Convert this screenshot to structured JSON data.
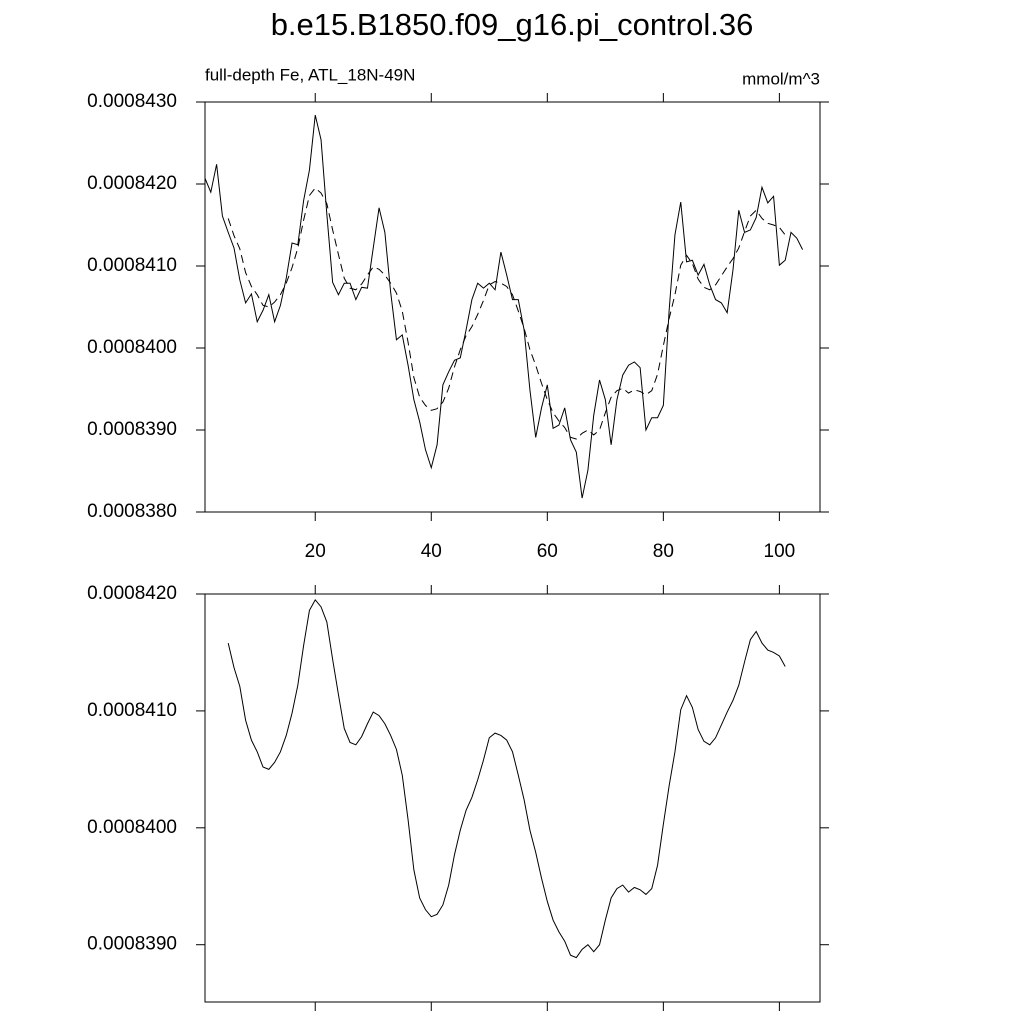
{
  "chart_data": [
    {
      "type": "line",
      "title": "b.e15.B1850.f09_g16.pi_control.36",
      "left_string": "full-depth Fe, ATL_18N-49N",
      "right_string": "mmol/m^3",
      "x": [
        1,
        2,
        3,
        4,
        5,
        6,
        7,
        8,
        9,
        10,
        11,
        12,
        13,
        14,
        15,
        16,
        17,
        18,
        19,
        20,
        21,
        22,
        23,
        24,
        25,
        26,
        27,
        28,
        29,
        30,
        31,
        32,
        33,
        34,
        35,
        36,
        37,
        38,
        39,
        40,
        41,
        42,
        43,
        44,
        45,
        46,
        47,
        48,
        49,
        50,
        51,
        52,
        53,
        54,
        55,
        56,
        57,
        58,
        59,
        60,
        61,
        62,
        63,
        64,
        65,
        66,
        67,
        68,
        69,
        70,
        71,
        72,
        73,
        74,
        75,
        76,
        77,
        78,
        79,
        80,
        81,
        82,
        83,
        84,
        85,
        86,
        87,
        88,
        89,
        90,
        91,
        92,
        93,
        94,
        95,
        96,
        97,
        98,
        99,
        100,
        101,
        102,
        103,
        104
      ],
      "series": [
        {
          "color": "#000000",
          "dash": false,
          "values": [
            0.00084207,
            0.0008419,
            0.00084224,
            0.00084161,
            0.00084141,
            0.00084122,
            0.00084083,
            0.00084055,
            0.00084066,
            0.00084032,
            0.00084046,
            0.00084065,
            0.00084032,
            0.00084052,
            0.00084085,
            0.00084128,
            0.00084126,
            0.0008418,
            0.00084217,
            0.00084284,
            0.00084254,
            0.00084163,
            0.0008408,
            0.00084065,
            0.00084079,
            0.00084079,
            0.00084059,
            0.00084074,
            0.00084073,
            0.00084122,
            0.00084171,
            0.00084141,
            0.00084068,
            0.0008401,
            0.00084016,
            0.00083979,
            0.00083937,
            0.0008391,
            0.00083876,
            0.00083854,
            0.00083882,
            0.00083955,
            0.00083971,
            0.00083985,
            0.00083988,
            0.00084022,
            0.00084059,
            0.00084079,
            0.00084073,
            0.00084079,
            0.00084071,
            0.00084117,
            0.00084089,
            0.00084059,
            0.00084059,
            0.00084022,
            0.00083949,
            0.00083891,
            0.00083927,
            0.00083955,
            0.00083902,
            0.00083906,
            0.00083927,
            0.00083888,
            0.00083873,
            0.00083817,
            0.00083851,
            0.00083918,
            0.00083961,
            0.00083937,
            0.00083882,
            0.00083937,
            0.00083967,
            0.00083979,
            0.00083983,
            0.00083976,
            0.000839,
            0.00083915,
            0.00083915,
            0.0008393,
            0.00084046,
            0.00084138,
            0.00084178,
            0.00084105,
            0.00084107,
            0.00084089,
            0.00084102,
            0.00084077,
            0.00084059,
            0.00084055,
            0.00084043,
            0.00084095,
            0.00084168,
            0.00084141,
            0.00084144,
            0.00084159,
            0.00084196,
            0.00084177,
            0.00084185,
            0.00084101,
            0.00084107,
            0.00084141,
            0.00084134,
            0.0008412
          ]
        },
        {
          "color": "#000000",
          "dash": true,
          "values": [
            null,
            null,
            null,
            null,
            0.00084158,
            0.00084137,
            0.00084121,
            0.00084092,
            0.00084075,
            0.00084065,
            0.00084052,
            0.0008405,
            0.00084056,
            0.00084065,
            0.00084079,
            0.00084098,
            0.00084122,
            0.00084156,
            0.00084186,
            0.00084195,
            0.00084189,
            0.00084176,
            0.00084144,
            0.00084114,
            0.00084085,
            0.00084073,
            0.00084071,
            0.00084078,
            0.00084089,
            0.00084099,
            0.00084096,
            0.00084089,
            0.00084079,
            0.00084067,
            0.00084045,
            0.00084007,
            0.00083964,
            0.0008394,
            0.0008393,
            0.00083924,
            0.00083926,
            0.00083934,
            0.00083951,
            0.00083977,
            0.00083998,
            0.00084015,
            0.00084026,
            0.00084041,
            0.00084058,
            0.00084077,
            0.00084081,
            0.00084079,
            0.00084075,
            0.00084065,
            0.00084045,
            0.00084024,
            0.00083998,
            0.00083979,
            0.00083957,
            0.00083937,
            0.00083921,
            0.00083911,
            0.00083903,
            0.00083891,
            0.00083889,
            0.00083896,
            0.000839,
            0.00083894,
            0.000839,
            0.00083921,
            0.0008394,
            0.00083948,
            0.00083951,
            0.00083945,
            0.00083949,
            0.00083947,
            0.00083943,
            0.00083948,
            0.00083968,
            0.00084003,
            0.00084036,
            0.00084065,
            0.00084101,
            0.00084113,
            0.00084103,
            0.00084084,
            0.00084074,
            0.00084071,
            0.00084077,
            0.00084088,
            0.00084099,
            0.00084109,
            0.00084122,
            0.00084142,
            0.00084161,
            0.00084168,
            0.00084158,
            0.00084152,
            0.0008415,
            0.00084147,
            0.00084138,
            null,
            null,
            null
          ]
        }
      ],
      "xlim": [
        1,
        107
      ],
      "xticks": [
        20,
        40,
        60,
        80,
        100
      ],
      "ylim": [
        0.000838,
        0.000843
      ],
      "yticks": [
        {
          "value": 0.000838,
          "label": "0.0008380"
        },
        {
          "value": 0.000839,
          "label": "0.0008390"
        },
        {
          "value": 0.00084,
          "label": "0.0008400"
        },
        {
          "value": 0.000841,
          "label": "0.0008410"
        },
        {
          "value": 0.000842,
          "label": "0.0008420"
        },
        {
          "value": 0.000843,
          "label": "0.0008430"
        }
      ]
    },
    {
      "type": "line",
      "x": [
        1,
        2,
        3,
        4,
        5,
        6,
        7,
        8,
        9,
        10,
        11,
        12,
        13,
        14,
        15,
        16,
        17,
        18,
        19,
        20,
        21,
        22,
        23,
        24,
        25,
        26,
        27,
        28,
        29,
        30,
        31,
        32,
        33,
        34,
        35,
        36,
        37,
        38,
        39,
        40,
        41,
        42,
        43,
        44,
        45,
        46,
        47,
        48,
        49,
        50,
        51,
        52,
        53,
        54,
        55,
        56,
        57,
        58,
        59,
        60,
        61,
        62,
        63,
        64,
        65,
        66,
        67,
        68,
        69,
        70,
        71,
        72,
        73,
        74,
        75,
        76,
        77,
        78,
        79,
        80,
        81,
        82,
        83,
        84,
        85,
        86,
        87,
        88,
        89,
        90,
        91,
        92,
        93,
        94,
        95,
        96,
        97,
        98,
        99,
        100,
        101,
        102,
        103,
        104
      ],
      "series": [
        {
          "color": "#000000",
          "dash": false,
          "values": [
            null,
            null,
            null,
            null,
            0.00084158,
            0.00084137,
            0.00084121,
            0.00084092,
            0.00084075,
            0.00084065,
            0.00084052,
            0.0008405,
            0.00084056,
            0.00084065,
            0.00084079,
            0.00084098,
            0.00084122,
            0.00084156,
            0.00084186,
            0.00084195,
            0.00084189,
            0.00084176,
            0.00084144,
            0.00084114,
            0.00084085,
            0.00084073,
            0.00084071,
            0.00084078,
            0.00084089,
            0.00084099,
            0.00084096,
            0.00084089,
            0.00084079,
            0.00084067,
            0.00084045,
            0.00084007,
            0.00083964,
            0.0008394,
            0.0008393,
            0.00083924,
            0.00083926,
            0.00083934,
            0.00083951,
            0.00083977,
            0.00083998,
            0.00084015,
            0.00084026,
            0.00084041,
            0.00084058,
            0.00084077,
            0.00084081,
            0.00084079,
            0.00084075,
            0.00084065,
            0.00084045,
            0.00084024,
            0.00083998,
            0.00083979,
            0.00083957,
            0.00083937,
            0.00083921,
            0.00083911,
            0.00083903,
            0.00083891,
            0.00083889,
            0.00083896,
            0.000839,
            0.00083894,
            0.000839,
            0.00083921,
            0.0008394,
            0.00083948,
            0.00083951,
            0.00083945,
            0.00083949,
            0.00083947,
            0.00083943,
            0.00083948,
            0.00083968,
            0.00084003,
            0.00084036,
            0.00084065,
            0.00084101,
            0.00084113,
            0.00084103,
            0.00084084,
            0.00084074,
            0.00084071,
            0.00084077,
            0.00084088,
            0.00084099,
            0.00084109,
            0.00084122,
            0.00084142,
            0.00084161,
            0.00084168,
            0.00084158,
            0.00084152,
            0.0008415,
            0.00084147,
            0.00084138,
            null,
            null,
            null
          ]
        }
      ],
      "xlim": [
        1,
        107
      ],
      "xticks": [
        20,
        40,
        60,
        80,
        100
      ],
      "ylim": [
        0.00083851,
        0.000842
      ],
      "yticks": [
        {
          "value": 0.000839,
          "label": "0.0008390"
        },
        {
          "value": 0.00084,
          "label": "0.0008400"
        },
        {
          "value": 0.000841,
          "label": "0.0008410"
        },
        {
          "value": 0.000842,
          "label": "0.0008420"
        }
      ]
    }
  ]
}
